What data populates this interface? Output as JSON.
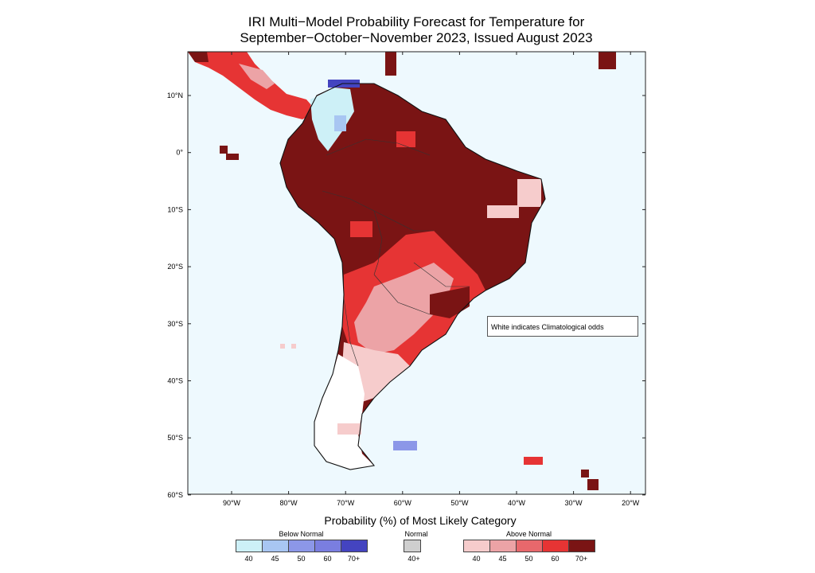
{
  "title": {
    "line1": "IRI Multi−Model Probability Forecast for Temperature for",
    "line2": "September−October−November 2023, Issued August 2023"
  },
  "map": {
    "lat_range": [
      -60,
      17
    ],
    "lon_range": [
      -97,
      -17
    ],
    "lat_ticks": [
      "10°N",
      "0°",
      "10°S",
      "20°S",
      "30°S",
      "40°S",
      "50°S",
      "60°S"
    ],
    "lon_ticks": [
      "90°W",
      "80°W",
      "70°W",
      "60°W",
      "50°W",
      "40°W",
      "30°W",
      "20°W"
    ],
    "ocean_color": "#eef9fe",
    "note": "White indicates Climatological odds"
  },
  "legend": {
    "heading": "Probability (%) of Most Likely Category",
    "below": {
      "label": "Below Normal",
      "ticks": [
        "40",
        "45",
        "50",
        "60",
        "70+"
      ],
      "colors": [
        "#cdf0f7",
        "#a8c6f2",
        "#8c97e8",
        "#7a7ee0",
        "#4444c0"
      ]
    },
    "normal": {
      "label": "Normal",
      "ticks": [
        "40+"
      ],
      "colors": [
        "#cfcfcf"
      ]
    },
    "above": {
      "label": "Above Normal",
      "ticks": [
        "40",
        "45",
        "50",
        "60",
        "70+"
      ],
      "colors": [
        "#f6cccc",
        "#eca3a6",
        "#e8686c",
        "#e63434",
        "#7a1414"
      ]
    }
  }
}
